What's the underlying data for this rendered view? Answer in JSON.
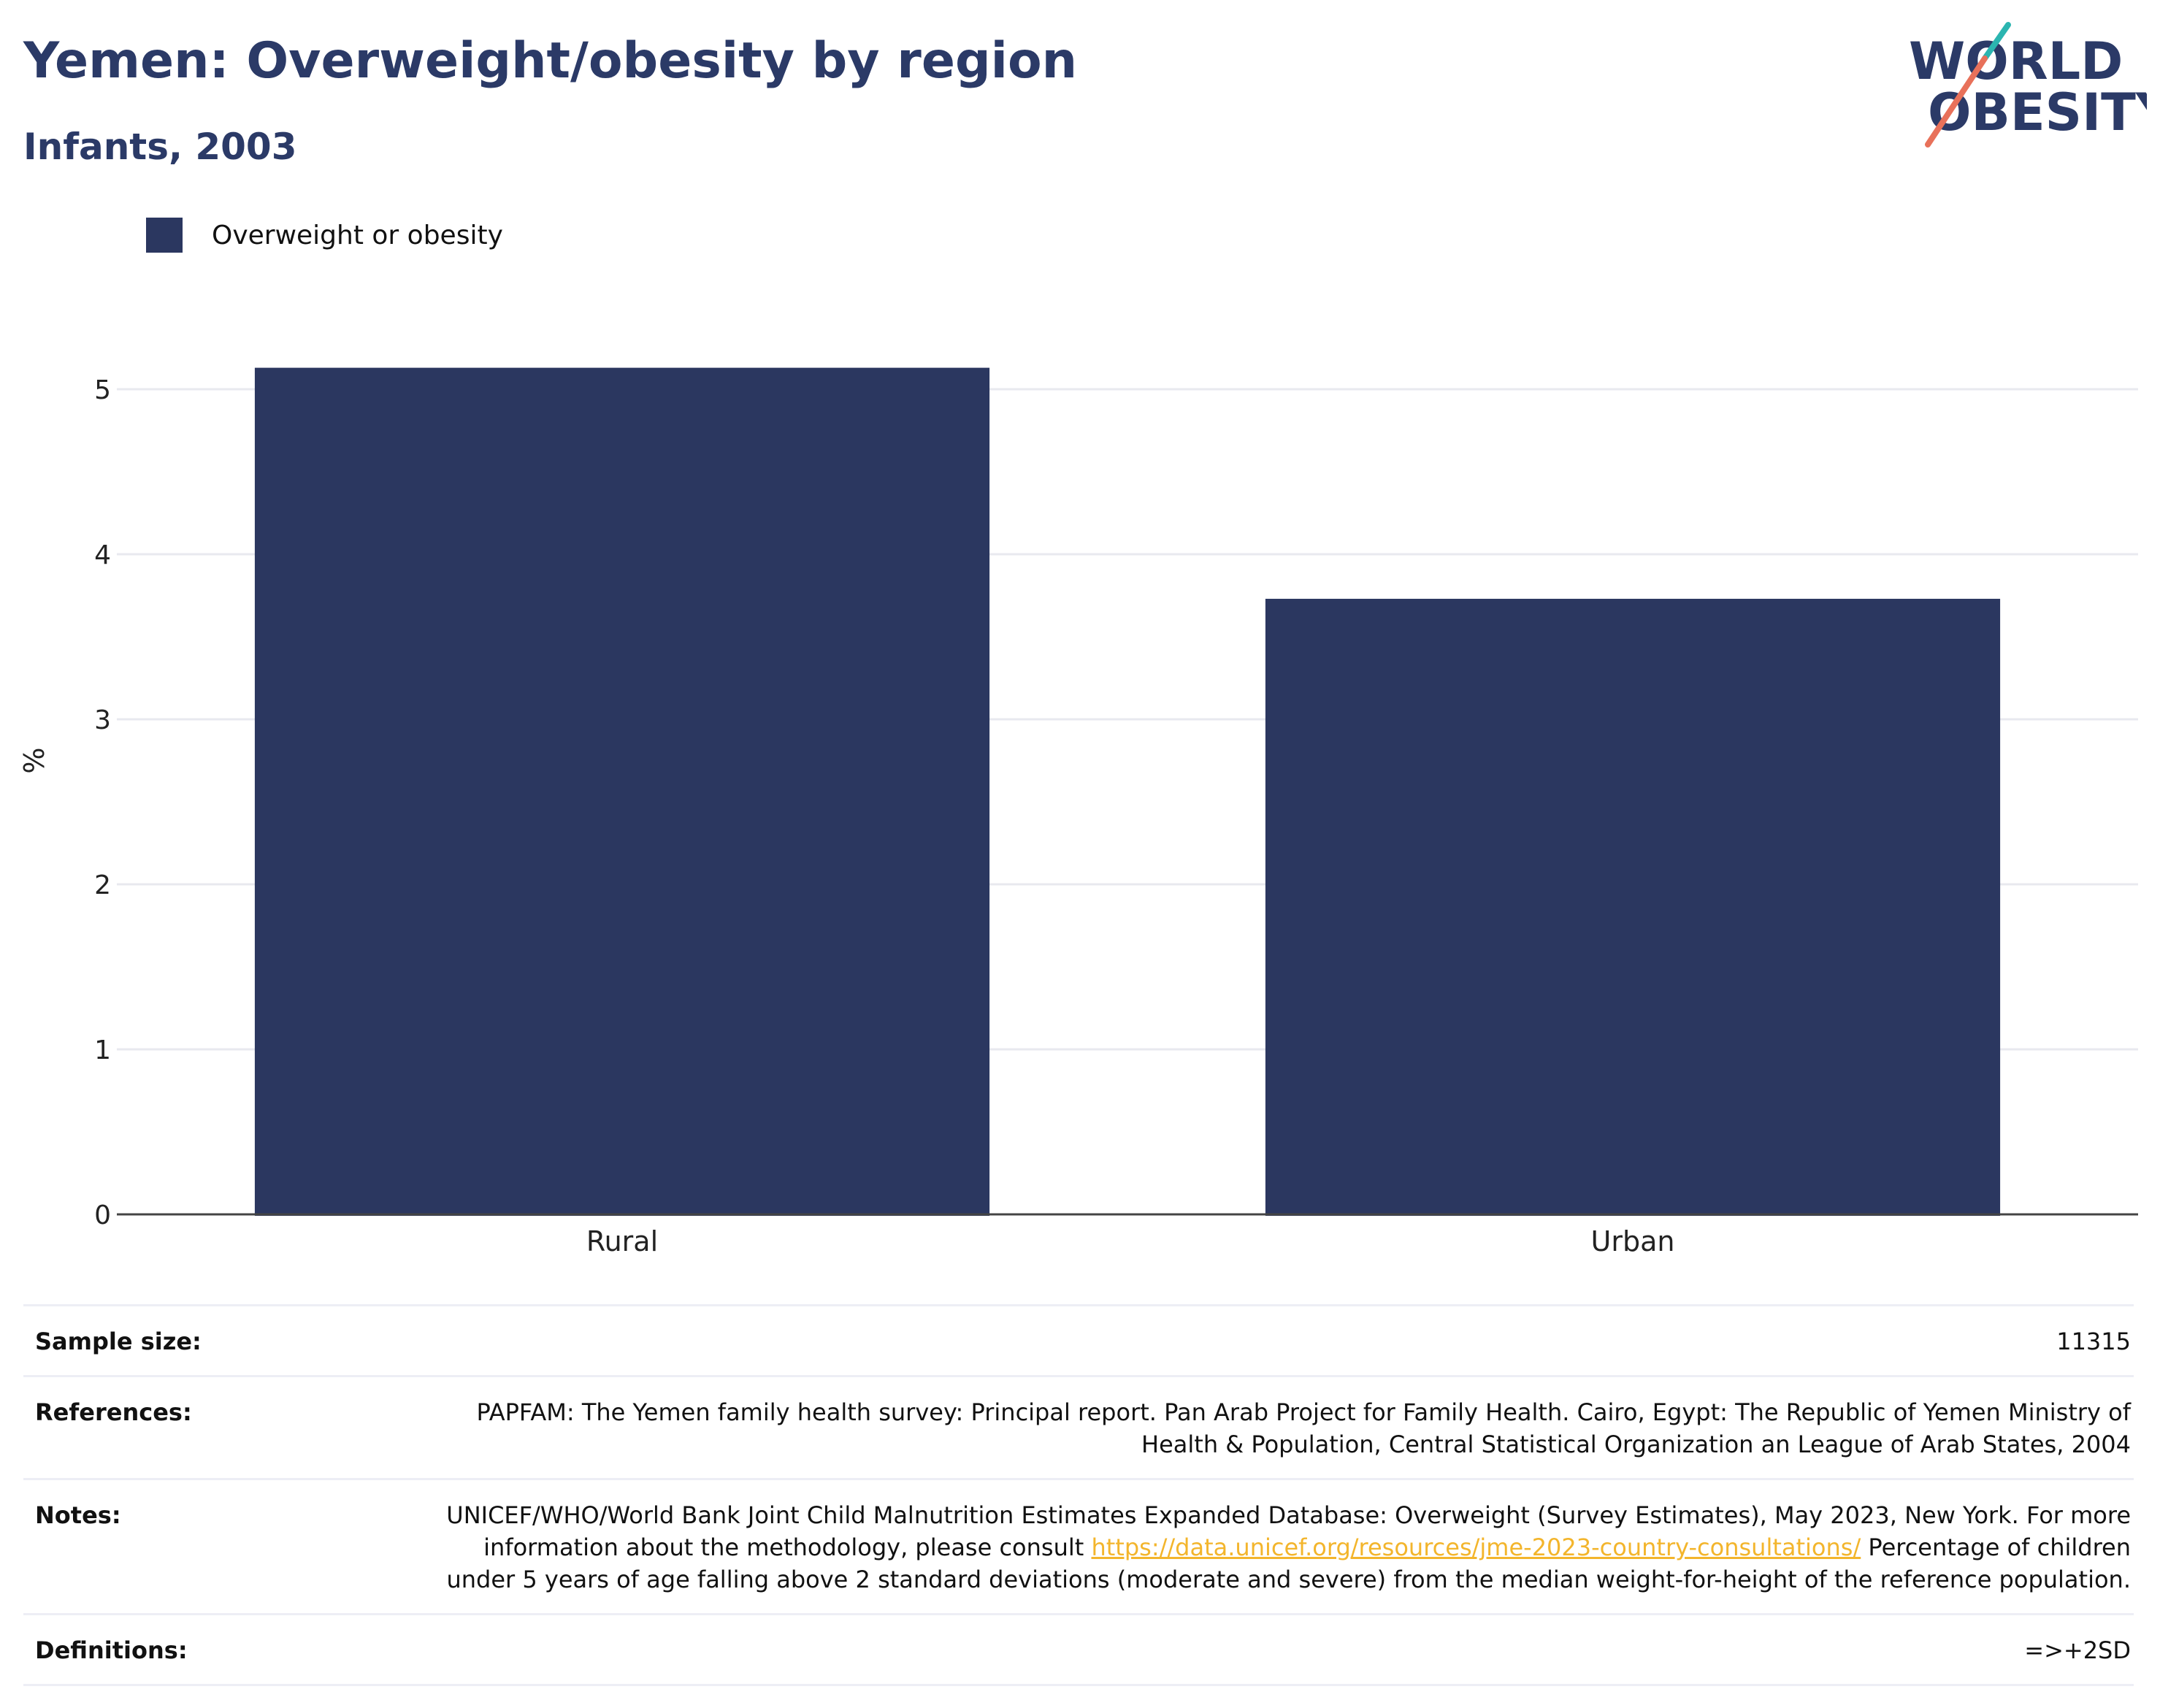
{
  "header": {
    "title": "Yemen: Overweight/obesity by region",
    "subtitle": "Infants, 2003"
  },
  "logo": {
    "line1": "WORLD",
    "line2": "OBESITY",
    "icon": "world-obesity-logo-icon",
    "colors": {
      "text": "#2b3a67",
      "slash_top": "#2bb5b0",
      "slash_bottom": "#e8715a"
    }
  },
  "chart_data": {
    "type": "bar",
    "title": "Yemen: Overweight/obesity by region",
    "subtitle": "Infants, 2003",
    "categories": [
      "Rural",
      "Urban"
    ],
    "series": [
      {
        "name": "Overweight or obesity",
        "values": [
          5.13,
          3.73
        ],
        "color": "#2b3760"
      }
    ],
    "xlabel": "",
    "ylabel": "%",
    "ylim": [
      0,
      5.5
    ],
    "yticks": [
      0,
      1,
      2,
      3,
      4,
      5
    ],
    "grid": true,
    "legend": "top-left"
  },
  "footer": {
    "sample_size": {
      "label": "Sample size:",
      "value": "11315"
    },
    "references": {
      "label": "References:",
      "value": "PAPFAM: The Yemen family health survey: Principal report. Pan Arab Project for Family Health. Cairo, Egypt: The Republic of Yemen Ministry of Health & Population, Central Statistical Organization an League of Arab States, 2004"
    },
    "notes": {
      "label": "Notes:",
      "text_before": "UNICEF/WHO/World Bank Joint Child Malnutrition Estimates Expanded Database: Overweight (Survey Estimates), May 2023, New York. For more information about the methodology, please consult ",
      "link": "https://data.unicef.org/resources/jme-2023-country-consultations/",
      "text_after": " Percentage of children under 5 years of age falling above 2 standard deviations (moderate and severe) from the median weight-for-height of the reference population."
    },
    "definitions": {
      "label": "Definitions:",
      "value": "=>+2SD"
    }
  }
}
